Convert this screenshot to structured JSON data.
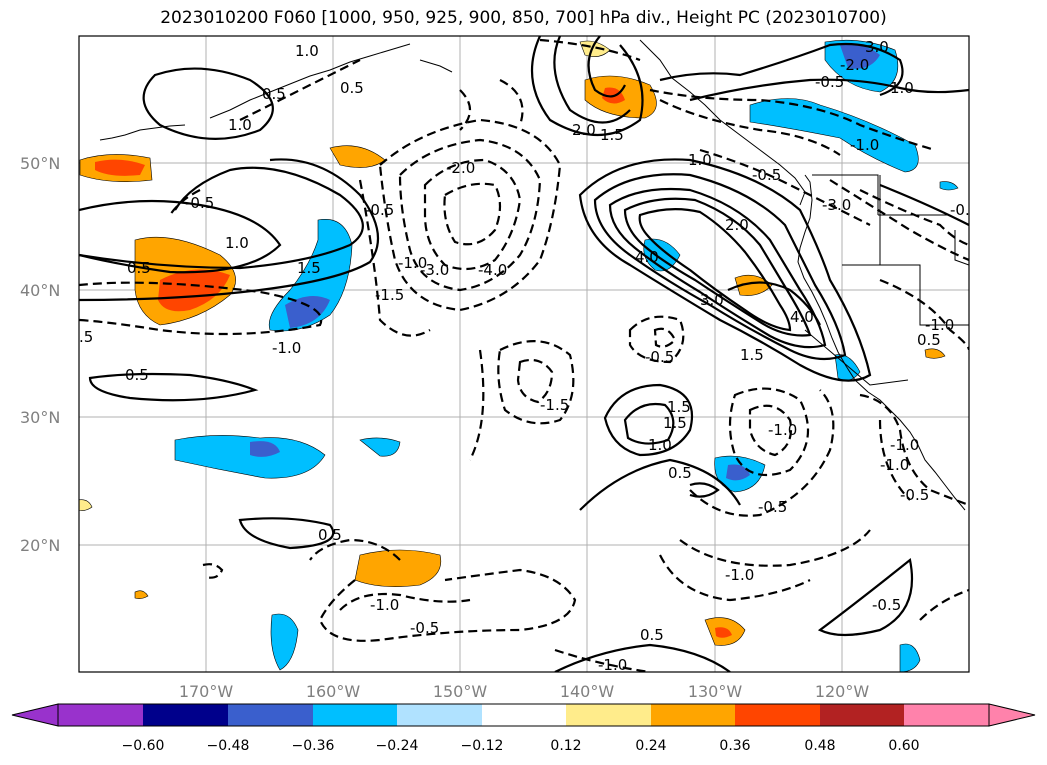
{
  "title": "2023010200 F060 [1000, 950, 925, 900, 850, 700] hPa div., Height PC (2023010700)",
  "lat_labels": [
    "50°N",
    "40°N",
    "30°N",
    "20°N"
  ],
  "lon_labels": [
    "170°W",
    "160°W",
    "150°W",
    "140°W",
    "130°W",
    "120°W"
  ],
  "colorbar": {
    "ticks": [
      "−0.60",
      "−0.48",
      "−0.36",
      "−0.24",
      "−0.12",
      "0.12",
      "0.24",
      "0.36",
      "0.48",
      "0.60"
    ],
    "colors": [
      "#9932cc",
      "#00008b",
      "#3a5fcd",
      "#00bfff",
      "#b0e2ff",
      "#ffffff",
      "#ffec8b",
      "#ffa500",
      "#ff4500",
      "#b22222",
      "#ff82ab"
    ]
  },
  "contour_labels": [
    "1.0",
    "0.5",
    "0.5",
    "1.0",
    "-0.5",
    "0.5",
    "1.0",
    "1.5",
    "-1.0",
    "0.5",
    ".5",
    "-2.0",
    "-3.0",
    "-4.0",
    "-0.5",
    "-1.0",
    "-1.5",
    "-1.5",
    "2.0",
    "1.5",
    "1.0",
    "-0.5",
    "2.0",
    "-3.0",
    "3.0",
    "-2.0",
    "-0.5",
    "1.0",
    "4.0",
    "3.0",
    "4.0",
    "1.5",
    "-0.5",
    "1.5",
    "1.0",
    "0.5",
    "-1.0",
    "-1.0",
    "-0.5",
    "-1.0",
    "0.5",
    "-1.0",
    "-0.5",
    "0.5",
    "-1.0",
    "-0.5",
    "-1.0",
    "0.5",
    "-1.0",
    "-0.5",
    "-1.0",
    "1.5",
    "-0.5"
  ]
}
